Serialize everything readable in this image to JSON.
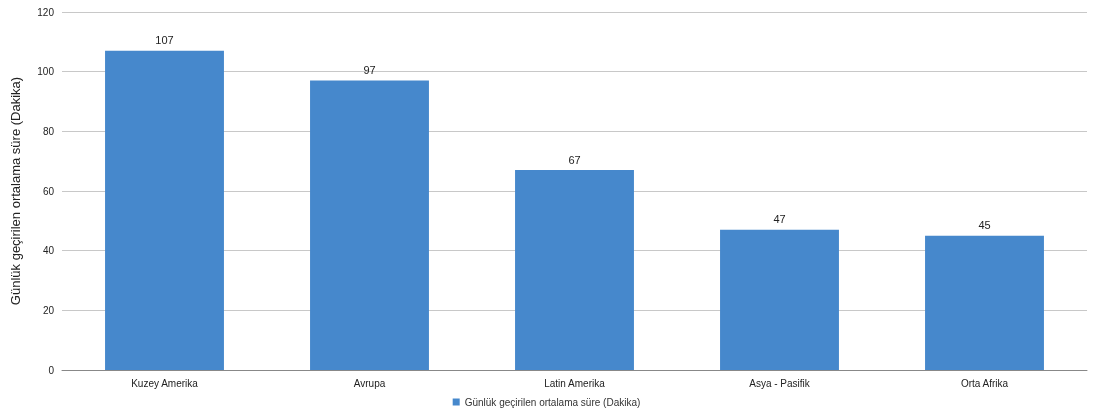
{
  "chart_data": {
    "type": "bar",
    "ylabel": "Günlük geçirilen ortalama süre (Dakika)",
    "categories": [
      "Kuzey Amerika",
      "Avrupa",
      "Latin Amerika",
      "Asya - Pasifik",
      "Orta Afrika"
    ],
    "series": [
      {
        "name": "Günlük geçirilen ortalama süre (Dakika)",
        "color": "#4688cc",
        "values": [
          107,
          97,
          67,
          47,
          45
        ]
      }
    ],
    "ylim": [
      0,
      120
    ],
    "yticks": [
      0,
      20,
      40,
      60,
      80,
      100,
      120
    ],
    "grid": "y",
    "legend": "bottom",
    "data_labels": true
  }
}
